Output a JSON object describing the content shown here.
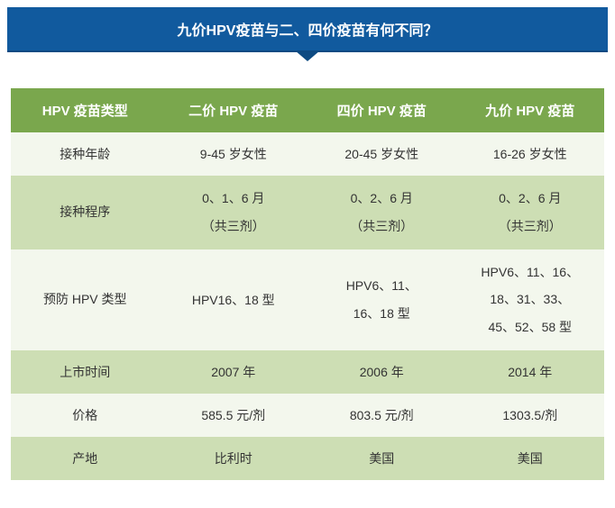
{
  "banner": {
    "title": "九价HPV疫苗与二、四价疫苗有何不同？"
  },
  "table": {
    "headers": [
      "HPV 疫苗类型",
      "二价 HPV 疫苗",
      "四价 HPV 疫苗",
      "九价 HPV 疫苗"
    ],
    "rows": [
      {
        "label": "接种年龄",
        "cells": [
          "9-45 岁女性",
          "20-45 岁女性",
          "16-26 岁女性"
        ],
        "shade": "light"
      },
      {
        "label": "接种程序",
        "cells": [
          "0、1、6 月\n（共三剂）",
          "0、2、6 月\n（共三剂）",
          "0、2、6 月\n（共三剂）"
        ],
        "shade": "dark"
      },
      {
        "label": "预防 HPV 类型",
        "cells": [
          "HPV16、18 型",
          "HPV6、11、\n16、18 型",
          "HPV6、11、16、\n18、31、33、\n45、52、58 型"
        ],
        "shade": "light"
      },
      {
        "label": "上市时间",
        "cells": [
          "2007 年",
          "2006 年",
          "2014 年"
        ],
        "shade": "dark"
      },
      {
        "label": "价格",
        "cells": [
          "585.5 元/剂",
          "803.5 元/剂",
          "1303.5/剂"
        ],
        "shade": "light"
      },
      {
        "label": "产地",
        "cells": [
          "比利时",
          "美国",
          "美国"
        ],
        "shade": "dark"
      }
    ]
  },
  "colors": {
    "banner_bg": "#115a9e",
    "banner_border": "#0d4a82",
    "header_bg": "#7aa74d",
    "row_light": "#f3f7ed",
    "row_dark": "#cddeb4"
  }
}
